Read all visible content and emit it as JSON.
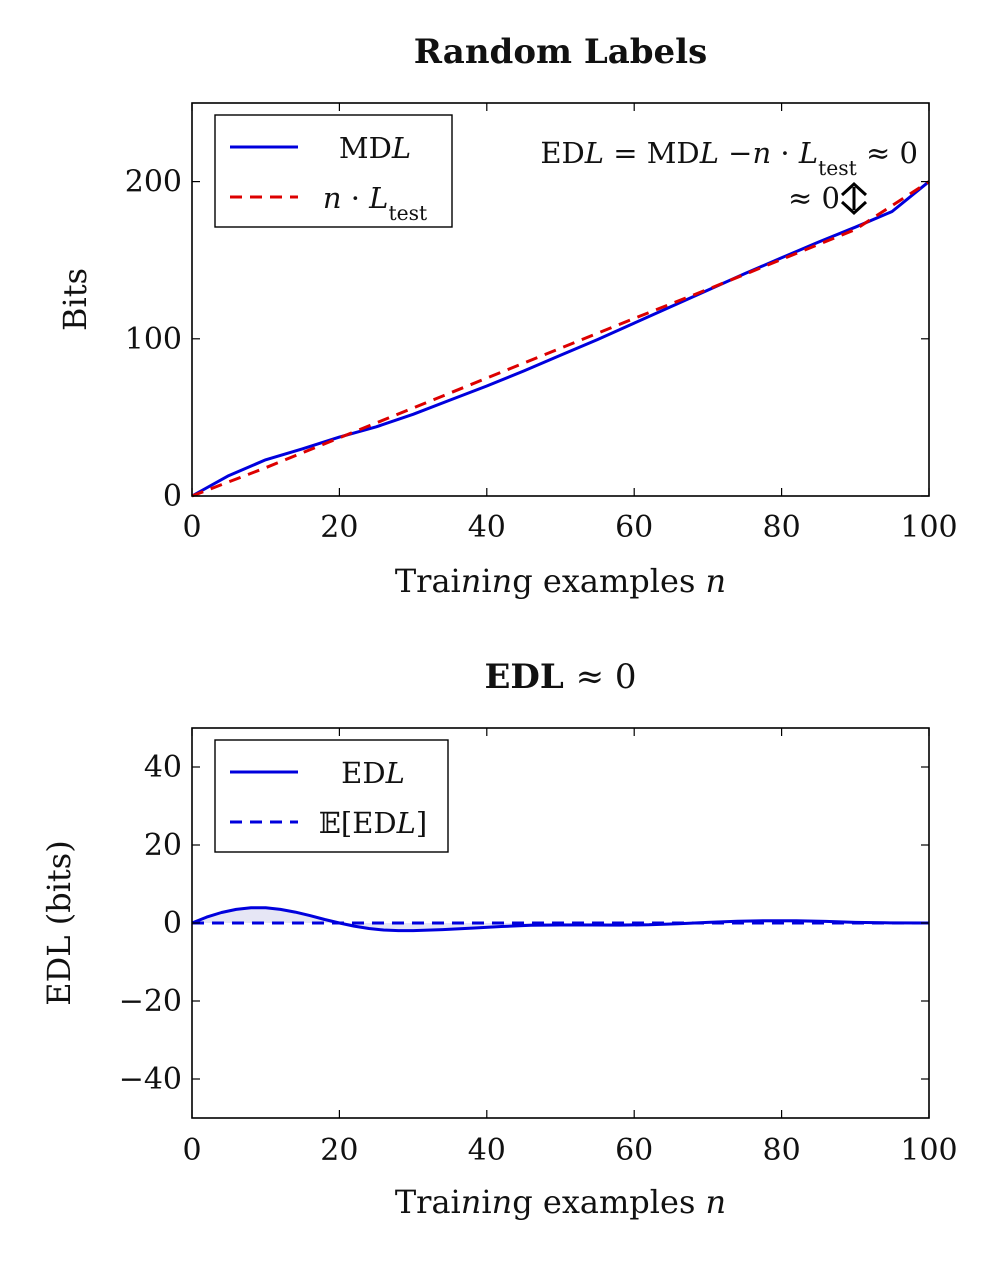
{
  "chart_data": [
    {
      "type": "line",
      "title": "Random Labels",
      "xlabel": "Training examples n",
      "ylabel": "Bits",
      "xlim": [
        0,
        100
      ],
      "ylim": [
        0,
        250
      ],
      "xticks": [
        "0",
        "20",
        "40",
        "60",
        "80",
        "100"
      ],
      "yticks": [
        "0",
        "100",
        "200"
      ],
      "series": [
        {
          "name": "MDL",
          "color": "#0000dd",
          "style": "solid",
          "x": [
            0,
            5,
            10,
            15,
            20,
            25,
            30,
            35,
            40,
            45,
            50,
            55,
            60,
            65,
            70,
            75,
            80,
            85,
            90,
            95,
            100
          ],
          "y": [
            0,
            13,
            23,
            30,
            37.5,
            44,
            52,
            61,
            70,
            79.5,
            89.5,
            99.5,
            110,
            120.5,
            131,
            141.5,
            151.5,
            161.5,
            171,
            181,
            200
          ]
        },
        {
          "name": "n · L_test",
          "color": "#dd0000",
          "style": "dashed",
          "x": [
            0,
            10,
            20,
            30,
            40,
            50,
            60,
            70,
            80,
            90,
            100
          ],
          "y": [
            0,
            18,
            37,
            56,
            75,
            94,
            113,
            131.5,
            150.5,
            169.5,
            200
          ]
        }
      ],
      "legend_location": "top-left",
      "annotation_equation": "EDL = MDL −n · L_test ≈ 0",
      "annotation_gap": "≈ 0"
    },
    {
      "type": "line",
      "title": "EDL ≈ 0",
      "xlabel": "Training examples n",
      "ylabel": "EDL (bits)",
      "xlim": [
        0,
        100
      ],
      "ylim": [
        -50,
        50
      ],
      "xticks": [
        "0",
        "20",
        "40",
        "60",
        "80",
        "100"
      ],
      "yticks": [
        "40",
        "20",
        "0",
        "−20",
        "−40"
      ],
      "series": [
        {
          "name": "EDL",
          "color": "#0000dd",
          "style": "solid",
          "fill": "#e6e6f5",
          "x": [
            0,
            2,
            4,
            6,
            8,
            10,
            12,
            14,
            16,
            18,
            20,
            22,
            24,
            26,
            28,
            30,
            34,
            38,
            42,
            46,
            50,
            54,
            58,
            62,
            66,
            70,
            74,
            78,
            82,
            86,
            90,
            94,
            100
          ],
          "y": [
            0,
            1.5,
            2.7,
            3.5,
            3.9,
            3.9,
            3.5,
            2.8,
            1.9,
            0.9,
            0,
            -0.8,
            -1.4,
            -1.8,
            -1.95,
            -1.95,
            -1.7,
            -1.3,
            -0.9,
            -0.6,
            -0.5,
            -0.5,
            -0.55,
            -0.45,
            -0.2,
            0.15,
            0.45,
            0.6,
            0.6,
            0.4,
            0.15,
            0.05,
            0
          ]
        },
        {
          "name": "𝔼[EDL]",
          "color": "#0000dd",
          "style": "dashed",
          "x": [
            0,
            100
          ],
          "y": [
            0,
            0
          ]
        }
      ],
      "legend_location": "top-left"
    }
  ]
}
